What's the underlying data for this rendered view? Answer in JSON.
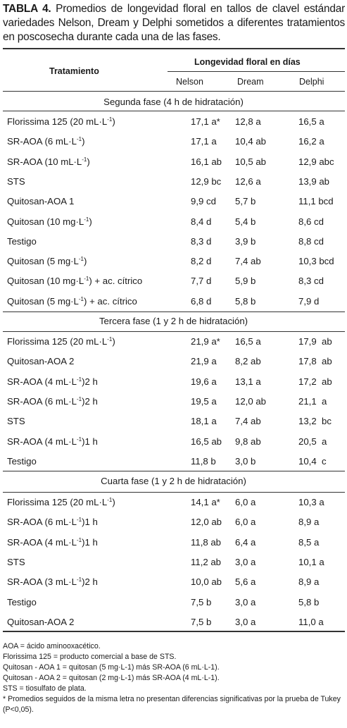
{
  "caption": {
    "label": "TABLA 4.",
    "text": " Promedios de longevidad floral en tallos de clavel estándar variedades Nelson, Dream y Delphi sometidos a diferentes tratamientos en poscosecha durante cada una de las fases."
  },
  "header": {
    "tratamiento": "Tratamiento",
    "longevidad": "Longevidad floral en días",
    "varieties": [
      "Nelson",
      "Dream",
      "Delphi"
    ]
  },
  "sections": [
    {
      "title": "Segunda fase (4 h de hidratación)",
      "rows": [
        {
          "name": "Florissima 125 (20 mL·L",
          "name_post": ")",
          "sup": "-1",
          "nelson": "17,1 a*",
          "dream": "12,8 a",
          "delphi": "16,5 a"
        },
        {
          "name": "SR-AOA (6 mL·L",
          "name_post": ")",
          "sup": "-1",
          "nelson": "17,1 a",
          "dream": "10,4 ab",
          "delphi": "16,2 a"
        },
        {
          "name": "SR-AOA (10 mL·L",
          "name_post": ")",
          "sup": "-1",
          "nelson": "16,1 ab",
          "dream": "10,5 ab",
          "delphi": "12,9 abc"
        },
        {
          "name": "STS",
          "nelson": "12,9 bc",
          "dream": "12,6 a",
          "delphi": "13,9 ab"
        },
        {
          "name": "Quitosan-AOA 1",
          "nelson": "9,9 cd",
          "dream": "5,7 b",
          "delphi": "11,1 bcd"
        },
        {
          "name": "Quitosan (10 mg·L",
          "name_post": ")",
          "sup": "-1",
          "nelson": "8,4 d",
          "dream": "5,4 b",
          "delphi": "8,6 cd"
        },
        {
          "name": "Testigo",
          "nelson": "8,3 d",
          "dream": "3,9 b",
          "delphi": "8,8 cd"
        },
        {
          "name": "Quitosan (5 mg·L",
          "name_post": ")",
          "sup": "-1",
          "nelson": "8,2 d",
          "dream": "7,4 ab",
          "delphi": "10,3 bcd"
        },
        {
          "name": "Quitosan (10 mg·L",
          "name_post": ") + ac. cítrico",
          "sup": "-1",
          "nelson": "7,7 d",
          "dream": "5,9 b",
          "delphi": "8,3 cd"
        },
        {
          "name": "Quitosan (5 mg·L",
          "name_post": ") + ac. cítrico",
          "sup": "-1",
          "nelson": "6,8 d",
          "dream": "5,8 b",
          "delphi": "7,9 d"
        }
      ]
    },
    {
      "title": "Tercera fase (1 y 2 h de hidratación)",
      "rows": [
        {
          "name": "Florissima 125 (20 mL·L",
          "name_post": ")",
          "sup": "-1",
          "nelson": "21,9 a*",
          "dream": "16,5 a",
          "delphi": "17,9  ab"
        },
        {
          "name": "Quitosan-AOA 2",
          "nelson": "21,9 a",
          "dream": "8,2 ab",
          "delphi": "17,8  ab"
        },
        {
          "name": "SR-AOA (4 mL·L",
          "name_post": ")2 h",
          "sup": "-1",
          "nelson": "19,6 a",
          "dream": "13,1 a",
          "delphi": "17,2  ab"
        },
        {
          "name": "SR-AOA (6 mL·L",
          "name_post": ")2 h",
          "sup": "-1",
          "nelson": "19,5 a",
          "dream": "12,0 ab",
          "delphi": "21,1  a"
        },
        {
          "name": "STS",
          "nelson": "18,1 a",
          "dream": "7,4 ab",
          "delphi": "13,2  bc"
        },
        {
          "name": "SR-AOA (4 mL·L",
          "name_post": ")1 h",
          "sup": "-1",
          "nelson": "16,5 ab",
          "dream": "9,8 ab",
          "delphi": "20,5  a"
        },
        {
          "name": "Testigo",
          "nelson": "11,8 b",
          "dream": "3,0 b",
          "delphi": "10,4  c"
        }
      ]
    },
    {
      "title": "Cuarta fase (1 y 2 h de hidratación)",
      "rows": [
        {
          "name": "Florissima 125 (20 mL·L",
          "name_post": ")",
          "sup": "-1",
          "nelson": "14,1 a*",
          "dream": "6,0 a",
          "delphi": "10,3 a"
        },
        {
          "name": "SR-AOA (6 mL·L",
          "name_post": ")1 h",
          "sup": "-1",
          "nelson": "12,0 ab",
          "dream": "6,0 a",
          "delphi": "8,9 a"
        },
        {
          "name": "SR-AOA (4 mL·L",
          "name_post": ")1 h",
          "sup": "-1",
          "nelson": "11,8 ab",
          "dream": "6,4 a",
          "delphi": "8,5 a"
        },
        {
          "name": "STS",
          "nelson": "11,2 ab",
          "dream": "3,0 a",
          "delphi": "10,1 a"
        },
        {
          "name": "SR-AOA (3 mL·L",
          "name_post": ")2 h",
          "sup": "-1",
          "nelson": "10,0 ab",
          "dream": "5,6 a",
          "delphi": "8,9 a"
        },
        {
          "name": "Testigo",
          "nelson": "7,5 b",
          "dream": "3,0 a",
          "delphi": "5,8 b"
        },
        {
          "name": "Quitosan-AOA 2",
          "nelson": "7,5 b",
          "dream": "3,0 a",
          "delphi": "11,0 a"
        }
      ]
    }
  ],
  "notes": [
    "AOA = ácido aminooxacético.",
    "Florissima 125 = producto comercial a base de STS.",
    "Quitosan - AOA 1 = quitosan (5 mg·L-1) más SR-AOA (6 mL·L-1).",
    "Quitosan - AOA 2 = quitosan (2 mg·L-1) más SR-AOA (4 mL·L-1).",
    "STS = tiosulfato de plata.",
    "* Promedios seguidos de la misma letra no presentan diferencias significativas por la prueba de Tukey (P<0,05)."
  ]
}
